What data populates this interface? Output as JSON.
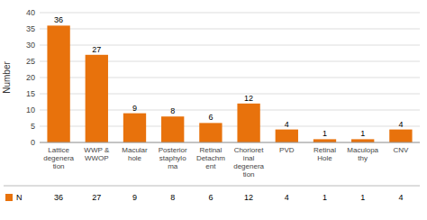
{
  "chart_data": {
    "type": "bar",
    "categories": [
      "Lattice\ndegenera\ntion",
      "WWP &\nWWOP",
      "Macular\nhole",
      "Posterior\nstaphylo\nma",
      "Retinal\nDetachm\nent",
      "Chorioret\ninal\ndegenera\ntion",
      "PVD",
      "Retinal\nHole",
      "Maculopa\nthy",
      "CNV"
    ],
    "series": [
      {
        "name": "N",
        "color": "#E8720C",
        "values": [
          36,
          27,
          9,
          8,
          6,
          12,
          4,
          1,
          1,
          4
        ]
      }
    ],
    "ylabel": "Number",
    "ylim": [
      0,
      40
    ],
    "yticks": [
      0,
      5,
      10,
      15,
      20,
      25,
      30,
      35,
      40
    ],
    "grid": true,
    "data_labels": true,
    "legend": "bottom"
  }
}
